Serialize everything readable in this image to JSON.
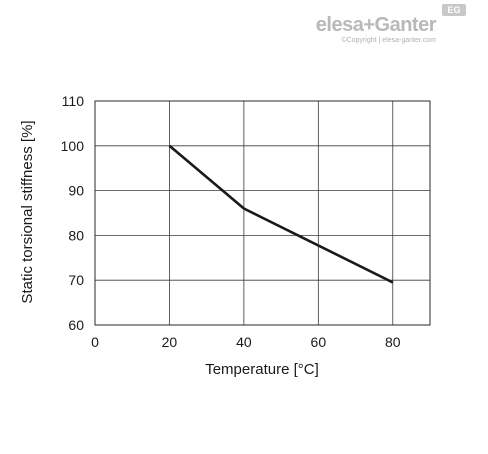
{
  "brand": {
    "name": "elesa+Ganter",
    "badge": "EG",
    "copyright": "©Copyright | elesa-ganter.com"
  },
  "chart_data": {
    "type": "line",
    "title": "",
    "xlabel": "Temperature [°C]",
    "ylabel": "Static torsional stiffness [%]",
    "xlim": [
      0,
      90
    ],
    "ylim": [
      60,
      110
    ],
    "xticks": [
      0,
      20,
      40,
      60,
      80
    ],
    "yticks": [
      60,
      70,
      80,
      90,
      100,
      110
    ],
    "grid": true,
    "series": [
      {
        "x": [
          20,
          40,
          80
        ],
        "y": [
          100,
          86,
          69.5
        ]
      }
    ],
    "colors": {
      "line": "#1a1a1a",
      "grid": "#3a3a3a"
    }
  }
}
